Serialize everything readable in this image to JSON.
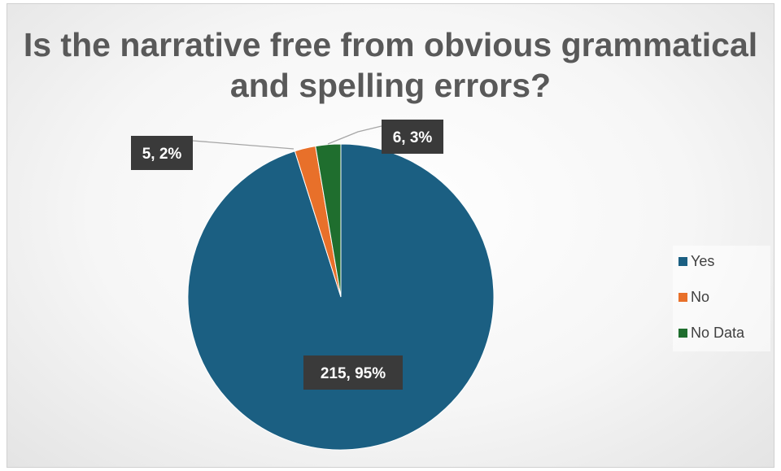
{
  "chart_data": {
    "type": "pie",
    "title": "Is the narrative free from obvious grammatical and spelling errors?",
    "categories": [
      "Yes",
      "No",
      "No Data"
    ],
    "values": [
      215,
      5,
      6
    ],
    "percent_labels": [
      "95%",
      "2%",
      "3%"
    ],
    "data_labels": [
      "215, 95%",
      "5, 2%",
      "6, 3%"
    ],
    "colors": [
      "#1b5f82",
      "#e8702a",
      "#1f6e2e"
    ],
    "legend": {
      "position": "right",
      "entries": [
        "Yes",
        "No",
        "No Data"
      ]
    },
    "start_angle_deg": 0,
    "direction": "clockwise"
  }
}
